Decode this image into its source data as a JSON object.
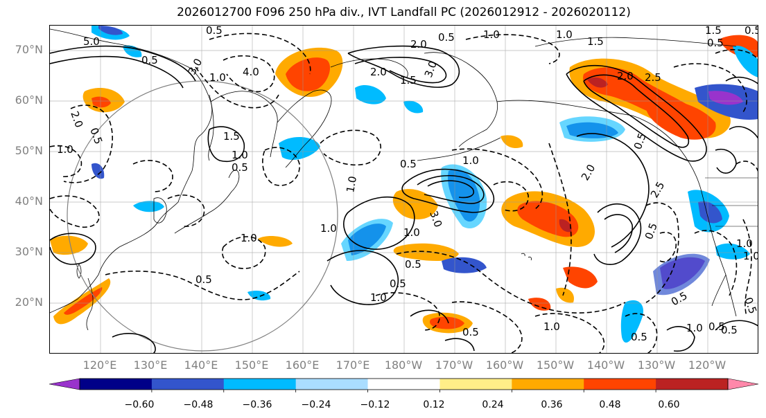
{
  "title": "2026012700 F096 250 hPa div., IVT Landfall PC (2026012912 - 2026020112)",
  "lat_labels": [
    "70°N",
    "60°N",
    "50°N",
    "40°N",
    "30°N",
    "20°N"
  ],
  "lon_labels": [
    "120°E",
    "130°E",
    "140°E",
    "150°E",
    "160°E",
    "170°E",
    "180°W",
    "170°W",
    "160°W",
    "150°W",
    "140°W",
    "130°W",
    "120°W"
  ],
  "colorbar": {
    "colors": [
      "#9933cc",
      "#000088",
      "#3355cc",
      "#00bbff",
      "#aaddff",
      "#ffffff",
      "#ffee88",
      "#ffaa00",
      "#ff4400",
      "#bb2222",
      "#ff88aa"
    ],
    "tick_labels": [
      "−0.60",
      "−0.48",
      "−0.36",
      "−0.24",
      "−0.12",
      "0.12",
      "0.24",
      "0.36",
      "0.48",
      "0.60"
    ]
  },
  "contour_labels": [
    "5.0",
    "0.5",
    "3.0",
    "1.0",
    "0.5",
    "4.0",
    "2.0",
    "1.5",
    "2.0",
    "3.0",
    "1.0",
    "0.5",
    "1.0",
    "1.5",
    "1.5",
    "0.5",
    "0.5",
    "2.0",
    "2.5",
    "1.0",
    "0.5",
    "2.0",
    "1.5",
    "1.0",
    "0.5",
    "1.0",
    "1.0",
    "0.5",
    "1.0",
    "1.0",
    "3.0",
    "0.5",
    "1.0",
    "0.5",
    "0.5",
    "2.0",
    "1.0",
    "0.5",
    "1.0",
    "0.5",
    "0.5",
    "1.0",
    "0.5",
    "1.0",
    "0.5",
    "2.5",
    "0.5",
    "0.5",
    "0.5",
    "1.0"
  ]
}
